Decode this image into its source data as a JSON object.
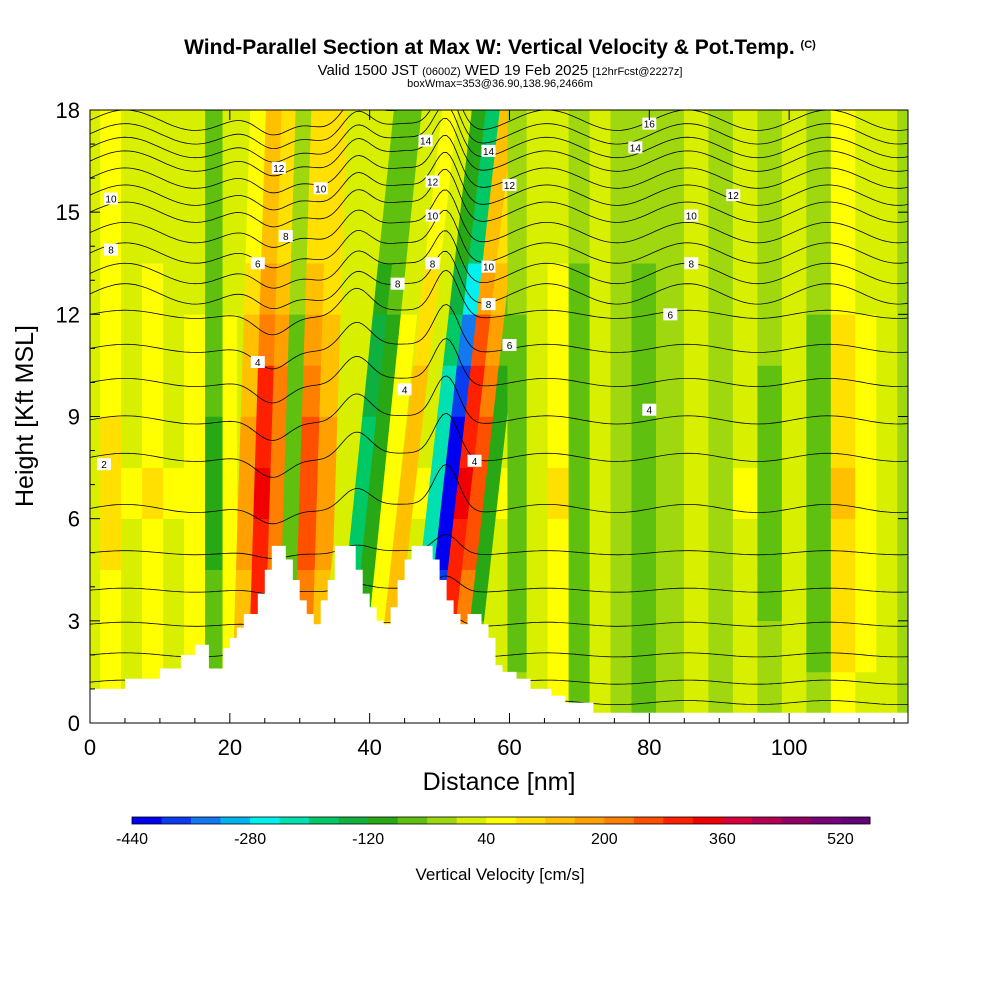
{
  "header": {
    "title": "Wind-Parallel Section at Max W: Vertical Velocity & Pot.Temp.",
    "copyright": "(C)",
    "valid_prefix": "Valid 1500 JST",
    "valid_z": "(0600Z)",
    "valid_date": "WED 19 Feb 2025",
    "forecast": "[12hrFcst@2227z]",
    "box_info": "boxWmax=353@36.90,138.96,2466m"
  },
  "chart_data": {
    "type": "heatmap",
    "xlabel": "Distance [nm]",
    "ylabel": "Height [Kft MSL]",
    "xlim": [
      0,
      117
    ],
    "ylim": [
      0,
      18
    ],
    "x_ticks": [
      "0",
      "20",
      "40",
      "60",
      "80",
      "100"
    ],
    "y_ticks": [
      "0",
      "3",
      "6",
      "9",
      "12",
      "15",
      "18"
    ],
    "colorbar": {
      "title": "Vertical Velocity [cm/s]",
      "range": [
        -440,
        560
      ],
      "step": 40,
      "tick_labels": [
        "-440",
        "-280",
        "-120",
        "40",
        "200",
        "360",
        "520"
      ],
      "colors": [
        "#0000f0",
        "#0a3df0",
        "#1478f0",
        "#00b4f0",
        "#00f0f0",
        "#00e0b0",
        "#00c864",
        "#10b040",
        "#28a814",
        "#60c010",
        "#a0d810",
        "#d8f000",
        "#ffff00",
        "#ffe000",
        "#ffc000",
        "#ffa000",
        "#ff8000",
        "#ff5000",
        "#ff2000",
        "#f00000",
        "#d8003c",
        "#b40050",
        "#900064",
        "#780078",
        "#640078"
      ]
    },
    "velocity_columns": [
      {
        "x": 0,
        "w": 30
      },
      {
        "x": 3,
        "w": 90
      },
      {
        "x": 6,
        "w": 40
      },
      {
        "x": 9,
        "w": 80
      },
      {
        "x": 12,
        "w": 40
      },
      {
        "x": 15,
        "w": 60
      },
      {
        "x": 18,
        "w": -90
      },
      {
        "x": 20,
        "w": 60
      },
      {
        "x": 22,
        "w": 170
      },
      {
        "x": 24.5,
        "w": 320
      },
      {
        "x": 26.5,
        "w": 230
      },
      {
        "x": 28.5,
        "w": -60
      },
      {
        "x": 31,
        "w": 260
      },
      {
        "x": 33.5,
        "w": 180
      },
      {
        "x": 36,
        "w": 30
      },
      {
        "x": 38,
        "w": -170
      },
      {
        "x": 40,
        "w": -120
      },
      {
        "x": 42,
        "w": 60
      },
      {
        "x": 44.5,
        "w": 150
      },
      {
        "x": 46.5,
        "w": 40
      },
      {
        "x": 48.5,
        "w": -240
      },
      {
        "x": 50.5,
        "w": -440
      },
      {
        "x": 52.5,
        "w": 330
      },
      {
        "x": 54.5,
        "w": 250
      },
      {
        "x": 56.5,
        "w": -100
      },
      {
        "x": 58.5,
        "w": 40
      },
      {
        "x": 61,
        "w": -60
      },
      {
        "x": 64,
        "w": 30
      },
      {
        "x": 67,
        "w": 80
      },
      {
        "x": 70,
        "w": -70
      },
      {
        "x": 73,
        "w": 20
      },
      {
        "x": 76,
        "w": -20
      },
      {
        "x": 79,
        "w": -80
      },
      {
        "x": 83,
        "w": -40
      },
      {
        "x": 87,
        "w": 20
      },
      {
        "x": 90,
        "w": -40
      },
      {
        "x": 94,
        "w": 40
      },
      {
        "x": 97,
        "w": -50
      },
      {
        "x": 101,
        "w": 30
      },
      {
        "x": 104,
        "w": -60
      },
      {
        "x": 108,
        "w": 120
      },
      {
        "x": 111,
        "w": 60
      },
      {
        "x": 114,
        "w": 20
      },
      {
        "x": 117,
        "w": -30
      }
    ],
    "terrain": [
      [
        0,
        1
      ],
      [
        5,
        1
      ],
      [
        5,
        1.3
      ],
      [
        10,
        1.3
      ],
      [
        10,
        1.6
      ],
      [
        13,
        1.6
      ],
      [
        13,
        2
      ],
      [
        15,
        2
      ],
      [
        15,
        2.3
      ],
      [
        17,
        2.3
      ],
      [
        17,
        1.6
      ],
      [
        19,
        1.6
      ],
      [
        19,
        2.2
      ],
      [
        20,
        2.2
      ],
      [
        20,
        2.5
      ],
      [
        21,
        2.5
      ],
      [
        21,
        2.8
      ],
      [
        22,
        2.8
      ],
      [
        22,
        3.2
      ],
      [
        24,
        3.2
      ],
      [
        24,
        3.8
      ],
      [
        25,
        3.8
      ],
      [
        25,
        4.5
      ],
      [
        26,
        4.5
      ],
      [
        26,
        5.2
      ],
      [
        28,
        5.2
      ],
      [
        28,
        4.8
      ],
      [
        29,
        4.8
      ],
      [
        29,
        4.2
      ],
      [
        30,
        4.2
      ],
      [
        30,
        3.6
      ],
      [
        31,
        3.6
      ],
      [
        31,
        3.2
      ],
      [
        32,
        3.2
      ],
      [
        32,
        2.9
      ],
      [
        33,
        2.9
      ],
      [
        33,
        3.6
      ],
      [
        34,
        3.6
      ],
      [
        34,
        4.2
      ],
      [
        35,
        4.2
      ],
      [
        35,
        5.2
      ],
      [
        38,
        5.2
      ],
      [
        38,
        4.5
      ],
      [
        39,
        4.5
      ],
      [
        39,
        3.8
      ],
      [
        40,
        3.8
      ],
      [
        40,
        3.4
      ],
      [
        41,
        3.4
      ],
      [
        41,
        3.0
      ],
      [
        42,
        3.0
      ],
      [
        42,
        2.9
      ],
      [
        43,
        2.9
      ],
      [
        43,
        3.4
      ],
      [
        44,
        3.4
      ],
      [
        44,
        4.2
      ],
      [
        45,
        4.2
      ],
      [
        45,
        4.8
      ],
      [
        46,
        4.8
      ],
      [
        46,
        5.2
      ],
      [
        49,
        5.2
      ],
      [
        49,
        4.8
      ],
      [
        50,
        4.8
      ],
      [
        50,
        4.2
      ],
      [
        51,
        4.2
      ],
      [
        51,
        3.6
      ],
      [
        52,
        3.6
      ],
      [
        52,
        3.2
      ],
      [
        53,
        3.2
      ],
      [
        53,
        2.9
      ],
      [
        54,
        2.9
      ],
      [
        54,
        3.2
      ],
      [
        56,
        3.2
      ],
      [
        56,
        2.9
      ],
      [
        57,
        2.9
      ],
      [
        57,
        2.5
      ],
      [
        58,
        2.5
      ],
      [
        58,
        1.7
      ],
      [
        59,
        1.7
      ],
      [
        59,
        1.5
      ],
      [
        61,
        1.5
      ],
      [
        61,
        1.3
      ],
      [
        63,
        1.3
      ],
      [
        63,
        1.0
      ],
      [
        66,
        1.0
      ],
      [
        66,
        0.8
      ],
      [
        68,
        0.8
      ],
      [
        68,
        0.6
      ],
      [
        72,
        0.6
      ],
      [
        72,
        0.3
      ],
      [
        117,
        0.3
      ]
    ],
    "theta_contours": {
      "base_heights": [
        0.6,
        1.2,
        2.0,
        2.9,
        3.9,
        5.0,
        6.3,
        7.8,
        8.9,
        10.0,
        11.0,
        12.0,
        12.6,
        13.2,
        13.8,
        14.4,
        15.0,
        15.5,
        16.0,
        16.5,
        16.9,
        17.3,
        17.7
      ],
      "labels": [
        {
          "text": "2",
          "x": 2,
          "y": 7.6
        },
        {
          "text": "4",
          "x": 24,
          "y": 10.6
        },
        {
          "text": "4",
          "x": 45,
          "y": 9.8
        },
        {
          "text": "4",
          "x": 55,
          "y": 7.7
        },
        {
          "text": "4",
          "x": 80,
          "y": 9.2
        },
        {
          "text": "6",
          "x": 24,
          "y": 13.5
        },
        {
          "text": "6",
          "x": 60,
          "y": 11.1
        },
        {
          "text": "6",
          "x": 83,
          "y": 12.0
        },
        {
          "text": "8",
          "x": 3,
          "y": 13.9
        },
        {
          "text": "8",
          "x": 28,
          "y": 14.3
        },
        {
          "text": "8",
          "x": 44,
          "y": 12.9
        },
        {
          "text": "8",
          "x": 49,
          "y": 13.5
        },
        {
          "text": "8",
          "x": 57,
          "y": 12.3
        },
        {
          "text": "8",
          "x": 86,
          "y": 13.5
        },
        {
          "text": "10",
          "x": 3,
          "y": 15.4
        },
        {
          "text": "10",
          "x": 33,
          "y": 15.7
        },
        {
          "text": "10",
          "x": 49,
          "y": 14.9
        },
        {
          "text": "10",
          "x": 57,
          "y": 13.4
        },
        {
          "text": "10",
          "x": 86,
          "y": 14.9
        },
        {
          "text": "12",
          "x": 27,
          "y": 16.3
        },
        {
          "text": "12",
          "x": 49,
          "y": 15.9
        },
        {
          "text": "12",
          "x": 60,
          "y": 15.8
        },
        {
          "text": "12",
          "x": 92,
          "y": 15.5
        },
        {
          "text": "14",
          "x": 48,
          "y": 17.1
        },
        {
          "text": "14",
          "x": 57,
          "y": 16.8
        },
        {
          "text": "14",
          "x": 78,
          "y": 16.9
        },
        {
          "text": "16",
          "x": 80,
          "y": 17.6
        }
      ]
    }
  }
}
